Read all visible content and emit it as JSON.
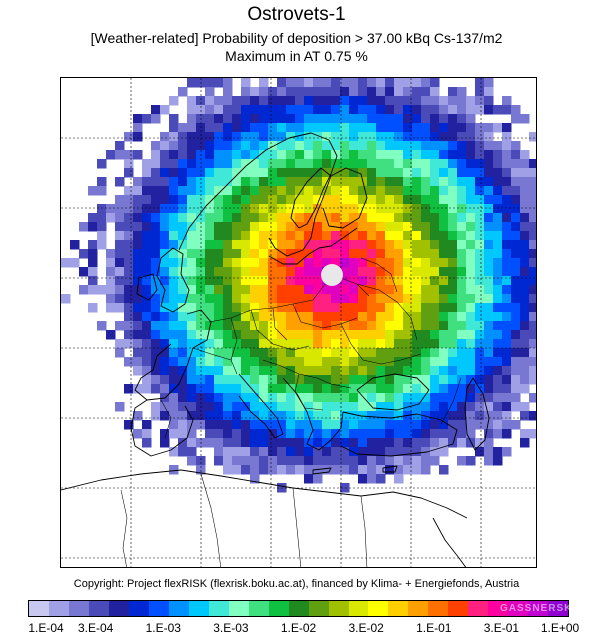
{
  "title": "Ostrovets-1",
  "subtitle": "[Weather-related] Probability of deposition >  37.00 kBq Cs-137/m2",
  "maximum_line": "Maximum in AT   0.75 %",
  "copyright": "Copyright: Project flexRISK (flexrisk.boku.ac.at), financed by Klima- + Energiefonds, Austria",
  "watermark": "GASSNERSKI",
  "source_marker": "white-circle-icon",
  "colorbar": {
    "labels": [
      "1.E-04",
      "3.E-04",
      "1.E-03",
      "3.E-03",
      "1.E-02",
      "3.E-02",
      "1.E-01",
      "3.E-01",
      "1.E+00"
    ],
    "colors": [
      "#c8c8f0",
      "#a0a0e6",
      "#7878d2",
      "#4a4ab8",
      "#2222a0",
      "#0028d2",
      "#0050ff",
      "#0090ff",
      "#00c8ff",
      "#40e8d8",
      "#80ffc0",
      "#40e080",
      "#10c040",
      "#208a20",
      "#60a010",
      "#a0c000",
      "#d8e800",
      "#ffff00",
      "#ffd000",
      "#ffa000",
      "#ff7000",
      "#ff4000",
      "#ff2080",
      "#ff00a0",
      "#e000c0",
      "#c000d0",
      "#9000d0"
    ]
  }
}
